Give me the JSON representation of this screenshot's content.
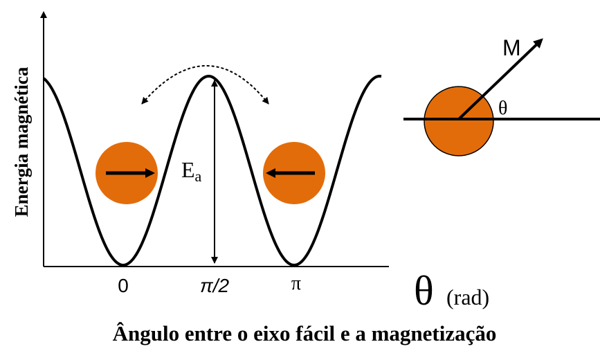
{
  "axis": {
    "y_label": "Energia magnética",
    "x_ticks": [
      "0",
      "π/2",
      "π"
    ],
    "x_symbol": "θ",
    "x_unit": "(rad)"
  },
  "energy_label": {
    "main": "E",
    "sub": "a"
  },
  "caption": "Ângulo entre o eixo fácil e a magnetização",
  "inset": {
    "vector": "M",
    "angle": "θ"
  }
}
